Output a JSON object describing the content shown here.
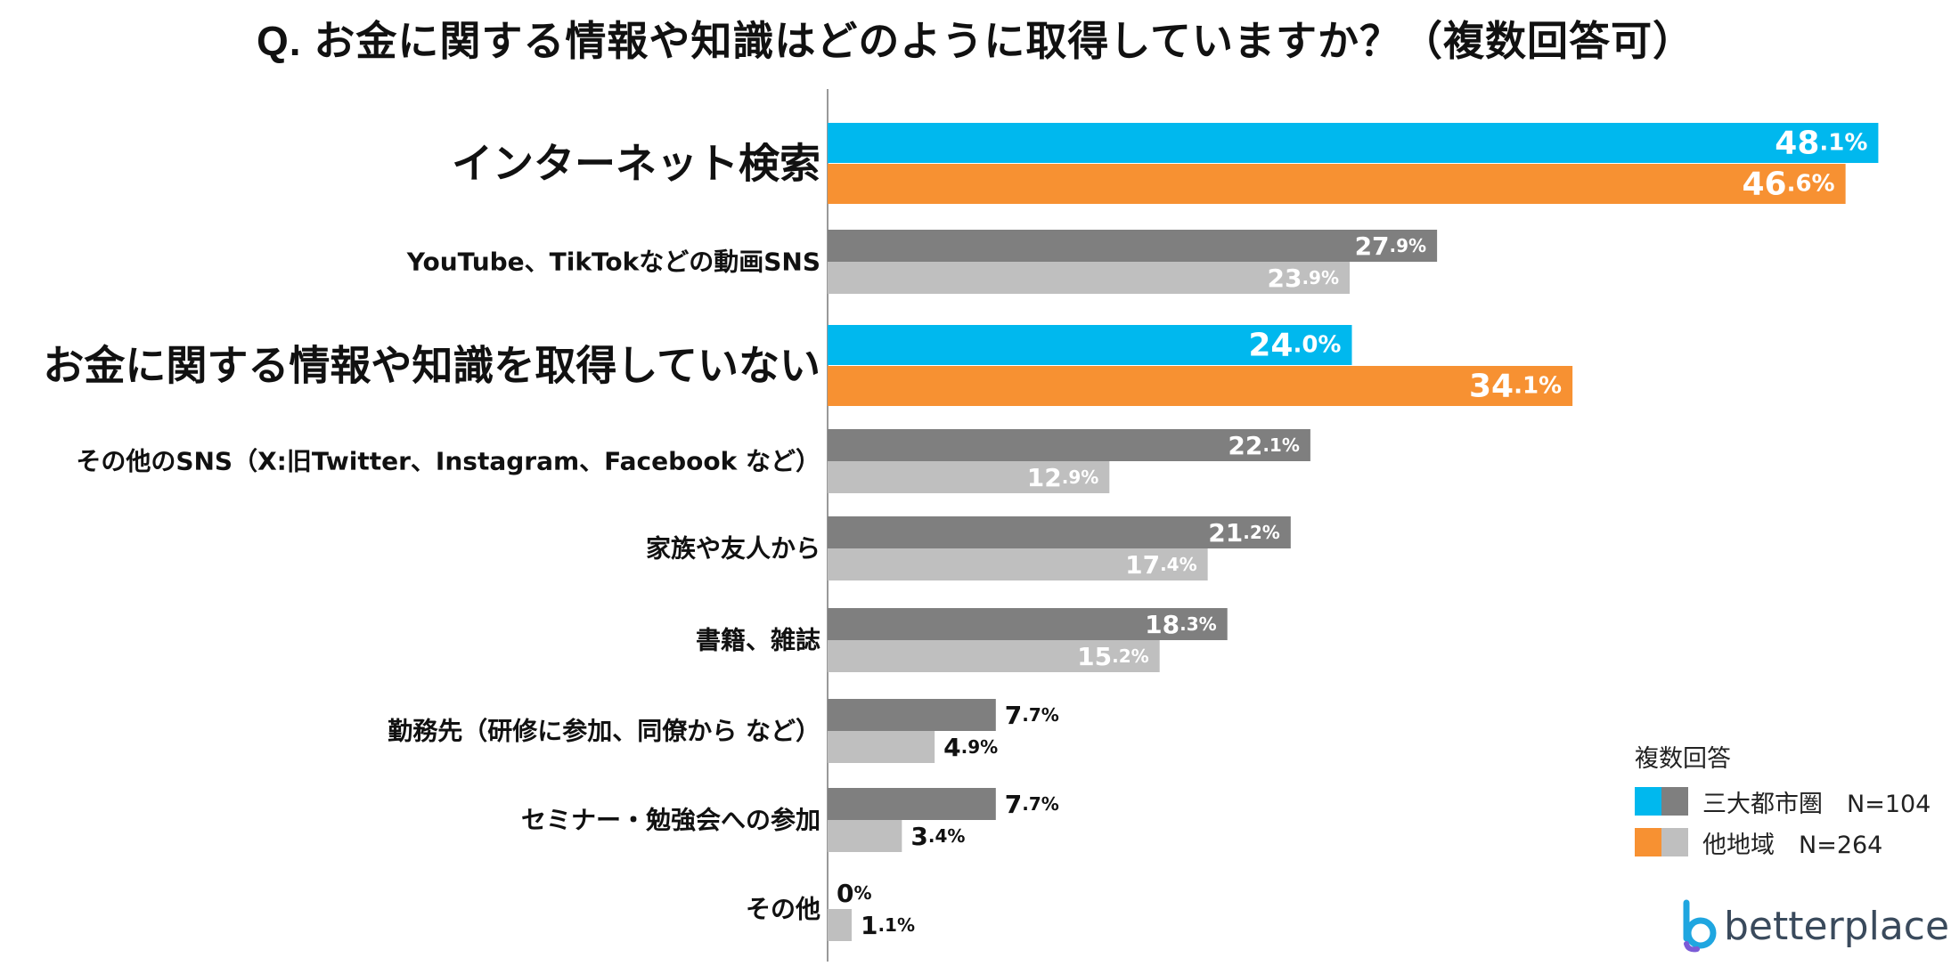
{
  "title": "Q. お金に関する情報や知識はどのように取得していますか？（複数回答可）",
  "legend": {
    "title": "複数回答",
    "items": [
      {
        "label": "三大都市圏　N=104",
        "colors": [
          "#00B8EE",
          "#7F7F7F"
        ]
      },
      {
        "label": "他地域　N=264",
        "colors": [
          "#F79132",
          "#BFBFBF"
        ]
      }
    ]
  },
  "logo": {
    "text": "betterplace"
  },
  "colors": {
    "highlight_a": "#00B8EE",
    "highlight_b": "#F79132",
    "normal_a": "#7F7F7F",
    "normal_b": "#BFBFBF",
    "axis": "#999999"
  },
  "chart_data": {
    "type": "bar",
    "orientation": "horizontal",
    "title": "Q. お金に関する情報や知識はどのように取得していますか？（複数回答可）",
    "xlim": [
      0,
      55
    ],
    "categories": [
      "インターネット検索",
      "YouTube、TikTokなどの動画SNS",
      "お金に関する情報や知識を取得していない",
      "その他のSNS（X:旧Twitter、Instagram、Facebook など）",
      "家族や友人から",
      "書籍、雑誌",
      "勤務先（研修に参加、同僚から など）",
      "セミナー・勉強会への参加",
      "その他"
    ],
    "highlighted": [
      true,
      false,
      true,
      false,
      false,
      false,
      false,
      false,
      false
    ],
    "series": [
      {
        "name": "三大都市圏　N=104",
        "values": [
          48.1,
          27.9,
          24.0,
          22.1,
          21.2,
          18.3,
          7.7,
          7.7,
          0
        ]
      },
      {
        "name": "他地域　N=264",
        "values": [
          46.6,
          23.9,
          34.1,
          12.9,
          17.4,
          15.2,
          4.9,
          3.4,
          1.1
        ]
      }
    ],
    "value_labels": [
      [
        "48.1%",
        "27.9%",
        "24.0%",
        "22.1%",
        "21.2%",
        "18.3%",
        "7.7%",
        "7.7%",
        "0%"
      ],
      [
        "46.6%",
        "23.9%",
        "34.1%",
        "12.9%",
        "17.4%",
        "15.2%",
        "4.9%",
        "3.4%",
        "1.1%"
      ]
    ]
  }
}
